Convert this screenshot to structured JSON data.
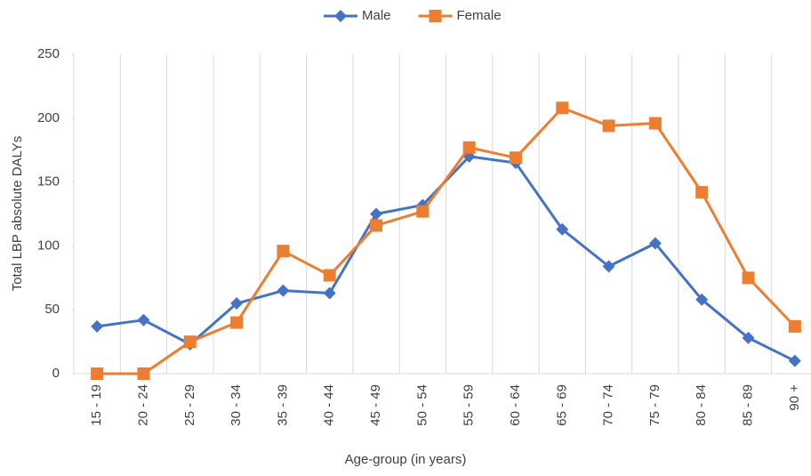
{
  "chart_data": {
    "type": "line",
    "x_label": "Age-group (in years)",
    "y_label": "Total LBP absolute DALYs",
    "categories": [
      "15 - 19",
      "20 - 24",
      "25 - 29",
      "30 - 34",
      "35 - 39",
      "40 - 44",
      "45 - 49",
      "50 - 54",
      "55 - 59",
      "60 - 64",
      "65 - 69",
      "70 - 74",
      "75 - 79",
      "80 - 84",
      "85 - 89",
      "90 +"
    ],
    "series": [
      {
        "name": "Male",
        "color": "#4472c4",
        "marker": "diamond",
        "values": [
          37,
          42,
          23,
          55,
          65,
          63,
          125,
          132,
          170,
          165,
          113,
          84,
          102,
          58,
          28,
          10
        ]
      },
      {
        "name": "Female",
        "color": "#ed7d31",
        "marker": "square",
        "values": [
          0,
          0,
          25,
          40,
          96,
          77,
          116,
          127,
          177,
          169,
          208,
          194,
          196,
          142,
          75,
          37
        ]
      }
    ],
    "ylim": [
      0,
      250
    ],
    "yticks": [
      0,
      50,
      100,
      150,
      200,
      250
    ],
    "grid": "vertical",
    "legend": "top"
  }
}
